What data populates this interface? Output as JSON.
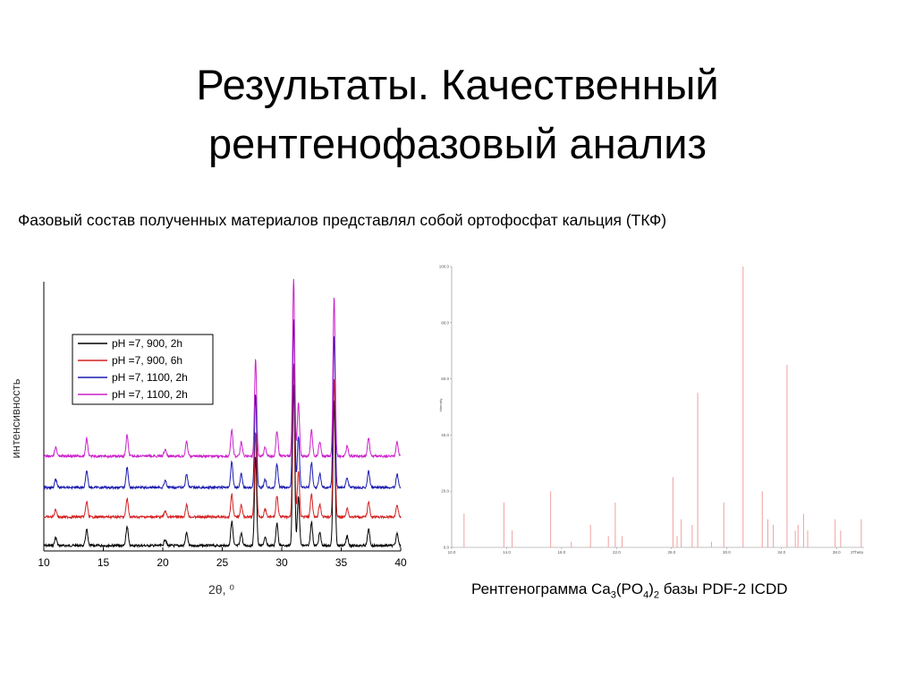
{
  "slide": {
    "title_line1": "Результаты. Качественный",
    "title_line2": "рентгенофазовый анализ",
    "subtitle": "Фазовый состав полученных материалов представлял собой ортофосфат кальция (ТКФ)"
  },
  "caption": {
    "prefix": "Рентгенограмма Ca",
    "sub1": "3",
    "mid": "(PO",
    "sub2": "4",
    "close": ")",
    "sub3": "2",
    "suffix": " базы PDF-2 ICDD"
  },
  "chart_data": [
    {
      "type": "line",
      "xlabel": "2θ, ⁰",
      "ylabel": "интенсивность",
      "xlim": [
        10,
        40
      ],
      "xticks": [
        10,
        15,
        20,
        25,
        30,
        35,
        40
      ],
      "grid": false,
      "legend_position": "top-left",
      "baseline_peaks": [
        {
          "x": 11.0,
          "h": 0.05
        },
        {
          "x": 13.6,
          "h": 0.1
        },
        {
          "x": 17.0,
          "h": 0.12
        },
        {
          "x": 20.2,
          "h": 0.04
        },
        {
          "x": 22.0,
          "h": 0.08
        },
        {
          "x": 25.8,
          "h": 0.15
        },
        {
          "x": 26.6,
          "h": 0.08
        },
        {
          "x": 27.8,
          "h": 0.55
        },
        {
          "x": 28.6,
          "h": 0.05
        },
        {
          "x": 29.6,
          "h": 0.14
        },
        {
          "x": 31.0,
          "h": 1.0
        },
        {
          "x": 31.4,
          "h": 0.3
        },
        {
          "x": 32.5,
          "h": 0.15
        },
        {
          "x": 33.2,
          "h": 0.08
        },
        {
          "x": 34.4,
          "h": 0.9
        },
        {
          "x": 35.5,
          "h": 0.06
        },
        {
          "x": 37.3,
          "h": 0.1
        },
        {
          "x": 39.7,
          "h": 0.08
        }
      ],
      "series": [
        {
          "name": "pH =7, 900, 2h",
          "color": "#000000",
          "offset": 0,
          "scale": 1.0
        },
        {
          "name": "pH =7, 900, 6h",
          "color": "#d42020",
          "offset": 1,
          "scale": 0.95
        },
        {
          "name": "pH =7, 1100, 2h",
          "color": "#1a1ab0",
          "offset": 2,
          "scale": 1.05
        },
        {
          "name": "pH =7, 1100, 2h",
          "color": "#cc22cc",
          "offset": 3,
          "scale": 1.1
        }
      ]
    },
    {
      "type": "bar",
      "ylabel": "Intensity",
      "xlim": [
        10,
        40
      ],
      "ylim": [
        0,
        100
      ],
      "yticks": [
        "0.0",
        "20.0",
        "40.0",
        "60.0",
        "80.0",
        "100.0"
      ],
      "xticks": [
        "10.0",
        "14.0",
        "18.0",
        "22.0",
        "26.0",
        "30.0",
        "34.0",
        "38.0"
      ],
      "x_end_label": "2Theta",
      "color": "#f0a0a0",
      "peaks": [
        {
          "x": 10.9,
          "y": 12
        },
        {
          "x": 13.8,
          "y": 16
        },
        {
          "x": 14.4,
          "y": 6
        },
        {
          "x": 17.2,
          "y": 20
        },
        {
          "x": 18.7,
          "y": 2
        },
        {
          "x": 20.1,
          "y": 8
        },
        {
          "x": 21.4,
          "y": 4
        },
        {
          "x": 21.9,
          "y": 16
        },
        {
          "x": 22.4,
          "y": 4
        },
        {
          "x": 26.1,
          "y": 25
        },
        {
          "x": 26.4,
          "y": 4
        },
        {
          "x": 26.7,
          "y": 10
        },
        {
          "x": 27.5,
          "y": 8
        },
        {
          "x": 27.9,
          "y": 55
        },
        {
          "x": 28.9,
          "y": 2
        },
        {
          "x": 29.8,
          "y": 16
        },
        {
          "x": 31.2,
          "y": 100
        },
        {
          "x": 32.6,
          "y": 20
        },
        {
          "x": 33.0,
          "y": 10
        },
        {
          "x": 33.4,
          "y": 8
        },
        {
          "x": 34.4,
          "y": 65
        },
        {
          "x": 35.0,
          "y": 6
        },
        {
          "x": 35.2,
          "y": 8
        },
        {
          "x": 35.6,
          "y": 12
        },
        {
          "x": 35.9,
          "y": 6
        },
        {
          "x": 37.9,
          "y": 10
        },
        {
          "x": 38.3,
          "y": 6
        },
        {
          "x": 39.8,
          "y": 10
        }
      ]
    }
  ]
}
